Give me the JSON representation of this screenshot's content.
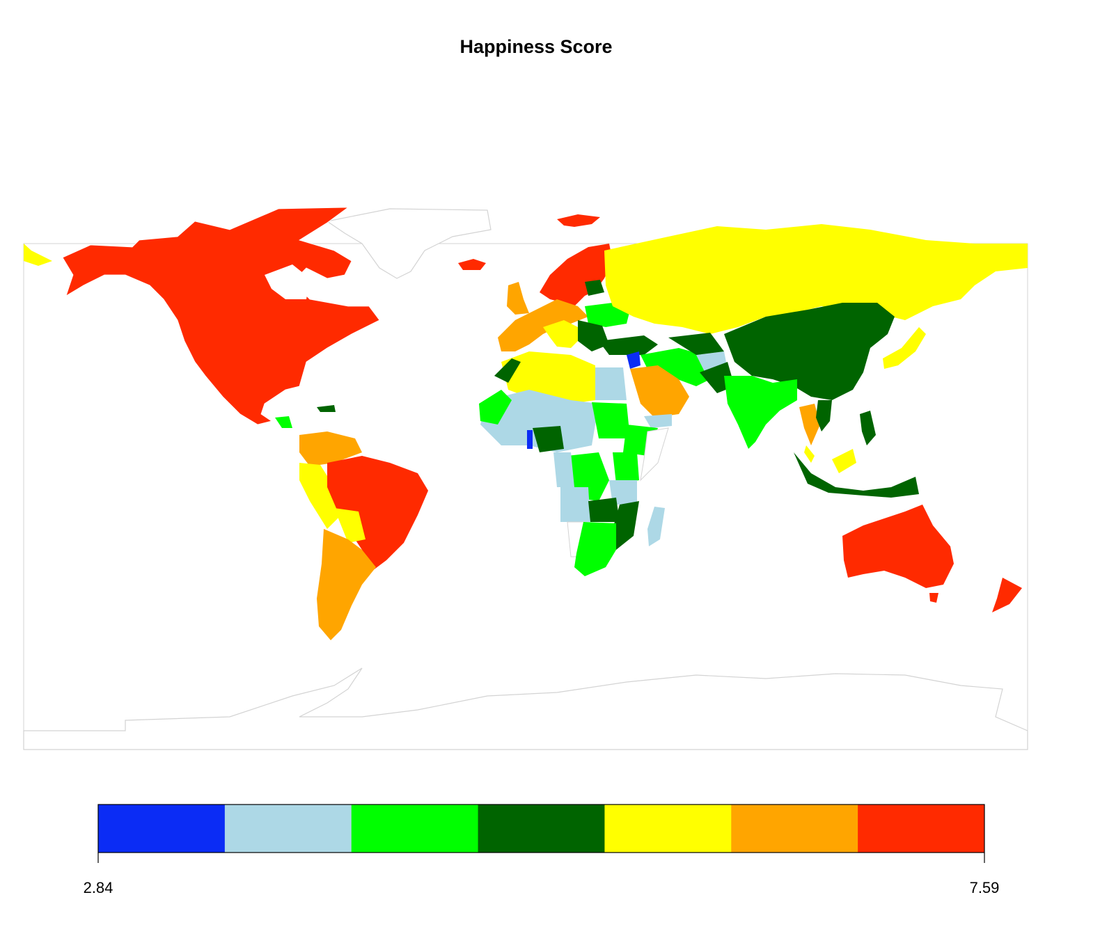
{
  "title": "Happiness Score",
  "legend": {
    "min_label": "2.84",
    "max_label": "7.59",
    "min": 2.84,
    "max": 7.59,
    "bins": [
      {
        "color": "#0b2cf5"
      },
      {
        "color": "#add8e6"
      },
      {
        "color": "#00ff00"
      },
      {
        "color": "#006400"
      },
      {
        "color": "#ffff00"
      },
      {
        "color": "#ffa500"
      },
      {
        "color": "#ff2a00"
      }
    ]
  },
  "map_colors": {
    "outline": "#d3d3d3",
    "no_data": "#ffffff"
  }
}
